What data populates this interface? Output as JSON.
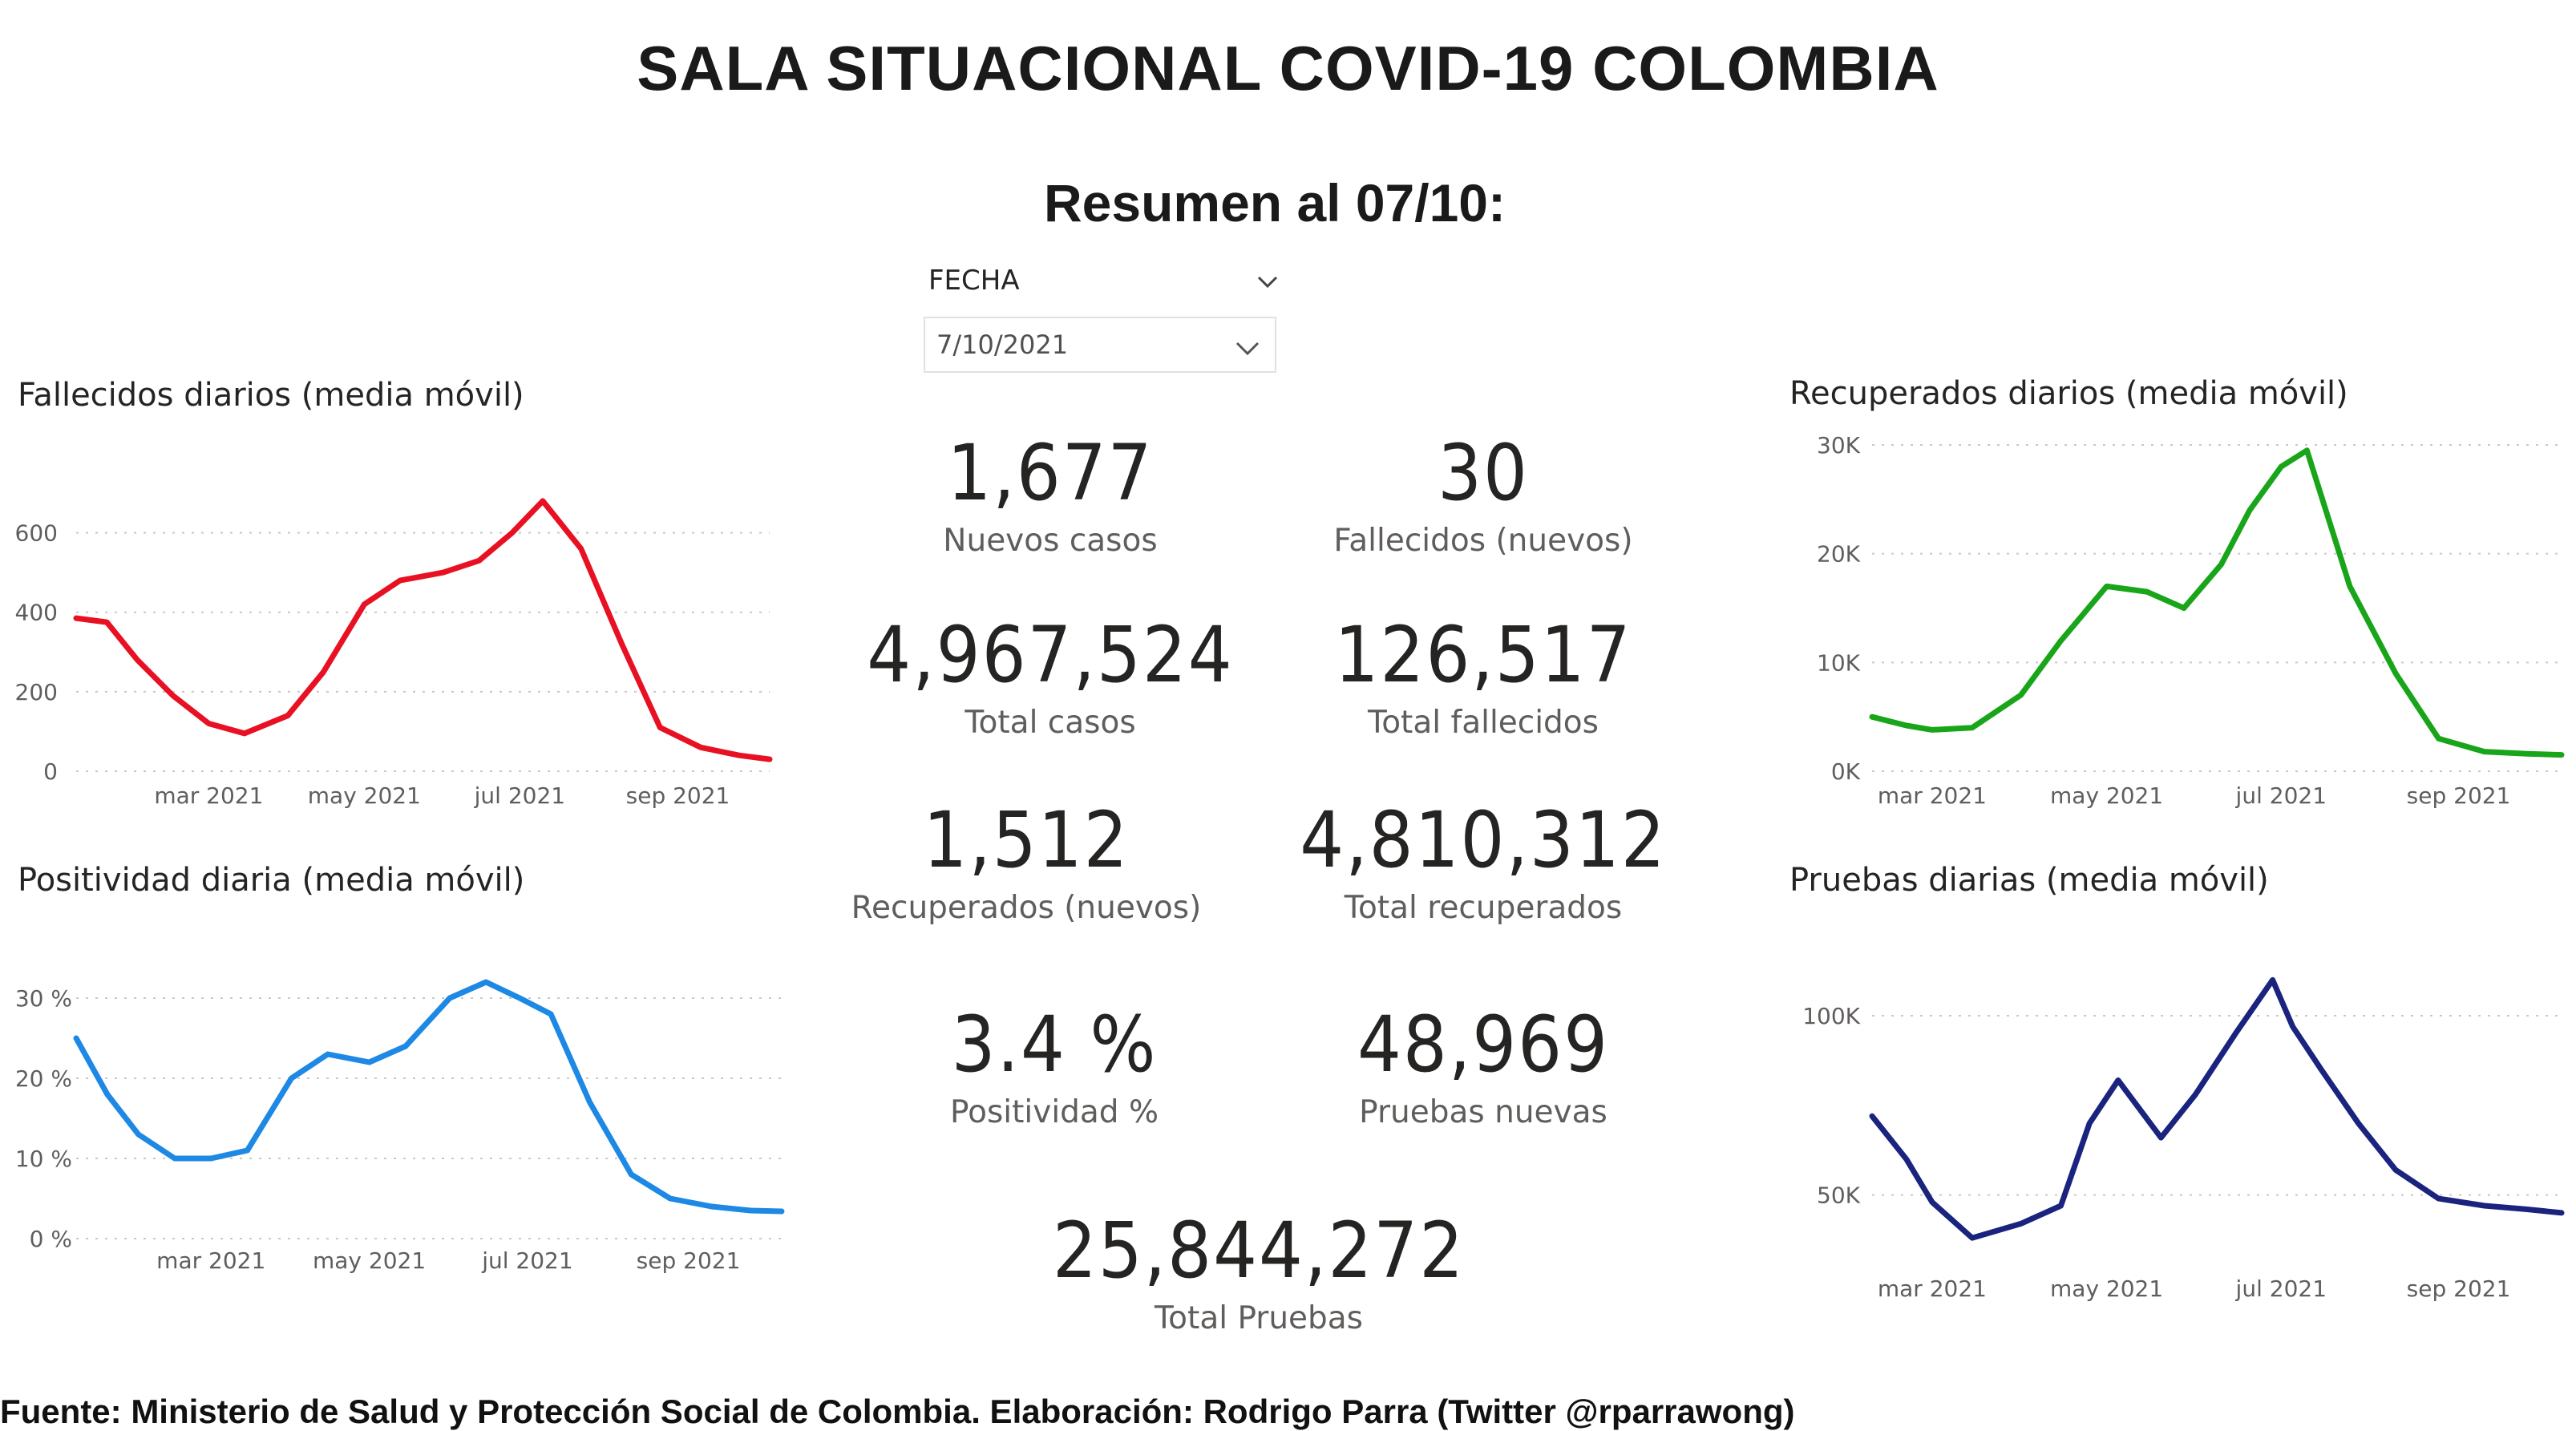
{
  "header": {
    "title": "SALA SITUACIONAL COVID-19 COLOMBIA",
    "subtitle": "Resumen al 07/10:"
  },
  "slicer": {
    "label": "FECHA",
    "value": "7/10/2021",
    "icon": "chevron-down-icon"
  },
  "kpis": {
    "nuevos_casos": {
      "value": "1,677",
      "label": "Nuevos casos"
    },
    "fallecidos_nuevos": {
      "value": "30",
      "label": "Fallecidos (nuevos)"
    },
    "total_casos": {
      "value": "4,967,524",
      "label": "Total casos"
    },
    "total_fallecidos": {
      "value": "126,517",
      "label": "Total fallecidos"
    },
    "recuperados_nuevos": {
      "value": "1,512",
      "label": "Recuperados (nuevos)"
    },
    "total_recuperados": {
      "value": "4,810,312",
      "label": "Total recuperados"
    },
    "positividad": {
      "value": "3.4 %",
      "label": "Positividad %"
    },
    "pruebas_nuevas": {
      "value": "48,969",
      "label": "Pruebas nuevas"
    },
    "total_pruebas": {
      "value": "25,844,272",
      "label": "Total Pruebas"
    }
  },
  "footer": {
    "text": "Fuente: Ministerio de Salud y Protección Social de Colombia. Elaboración: Rodrigo Parra (Twitter @rparrawong)"
  },
  "chart_data": [
    {
      "id": "fallecidos",
      "type": "line",
      "title": "Fallecidos diarios (media móvil)",
      "color": "#e81123",
      "ylim": [
        0,
        700
      ],
      "yticks": [
        0,
        200,
        400,
        600
      ],
      "ytick_labels": [
        "0",
        "200",
        "400",
        "600"
      ],
      "xlim": [
        "2021-01-08",
        "2021-10-07"
      ],
      "xticks": [
        "2021-03-01",
        "2021-05-01",
        "2021-07-01",
        "2021-09-01"
      ],
      "xtick_labels": [
        "mar 2021",
        "may 2021",
        "jul 2021",
        "sep 2021"
      ],
      "grid": true,
      "x": [
        "2021-01-08",
        "2021-01-20",
        "2021-02-01",
        "2021-02-15",
        "2021-03-01",
        "2021-03-15",
        "2021-04-01",
        "2021-04-15",
        "2021-05-01",
        "2021-05-15",
        "2021-06-01",
        "2021-06-15",
        "2021-06-28",
        "2021-07-10",
        "2021-07-25",
        "2021-08-10",
        "2021-08-25",
        "2021-09-10",
        "2021-09-25",
        "2021-10-07"
      ],
      "y": [
        385,
        375,
        280,
        190,
        120,
        95,
        140,
        250,
        420,
        480,
        500,
        530,
        600,
        680,
        560,
        320,
        110,
        60,
        40,
        30
      ]
    },
    {
      "id": "positividad",
      "type": "line",
      "title": "Positividad diaria (media móvil)",
      "color": "#1e88e5",
      "ylim": [
        0,
        33
      ],
      "yticks": [
        0,
        10,
        20,
        30
      ],
      "ytick_labels": [
        "0 %",
        "10 %",
        "20 %",
        "30 %"
      ],
      "xlim": [
        "2021-01-08",
        "2021-10-07"
      ],
      "xticks": [
        "2021-03-01",
        "2021-05-01",
        "2021-07-01",
        "2021-09-01"
      ],
      "xtick_labels": [
        "mar 2021",
        "may 2021",
        "jul 2021",
        "sep 2021"
      ],
      "grid": true,
      "x": [
        "2021-01-08",
        "2021-01-20",
        "2021-02-01",
        "2021-02-15",
        "2021-03-01",
        "2021-03-15",
        "2021-04-01",
        "2021-04-15",
        "2021-05-01",
        "2021-05-15",
        "2021-06-01",
        "2021-06-15",
        "2021-06-28",
        "2021-07-10",
        "2021-07-25",
        "2021-08-10",
        "2021-08-25",
        "2021-09-10",
        "2021-09-25",
        "2021-10-07"
      ],
      "y": [
        25,
        18,
        13,
        10,
        10,
        11,
        20,
        23,
        22,
        24,
        30,
        32,
        30,
        28,
        17,
        8,
        5,
        4,
        3.5,
        3.4
      ]
    },
    {
      "id": "recuperados",
      "type": "line",
      "title": "Recuperados diarios (media móvil)",
      "color": "#19a519",
      "ylim": [
        0,
        30000
      ],
      "yticks": [
        0,
        10000,
        20000,
        30000
      ],
      "ytick_labels": [
        "0K",
        "10K",
        "20K",
        "30K"
      ],
      "xlim": [
        "2021-02-08",
        "2021-10-07"
      ],
      "xticks": [
        "2021-03-01",
        "2021-05-01",
        "2021-07-01",
        "2021-09-01"
      ],
      "xtick_labels": [
        "mar 2021",
        "may 2021",
        "jul 2021",
        "sep 2021"
      ],
      "grid": true,
      "x": [
        "2021-02-08",
        "2021-02-20",
        "2021-03-01",
        "2021-03-15",
        "2021-04-01",
        "2021-04-15",
        "2021-05-01",
        "2021-05-15",
        "2021-05-28",
        "2021-06-10",
        "2021-06-20",
        "2021-07-01",
        "2021-07-10",
        "2021-07-25",
        "2021-08-10",
        "2021-08-25",
        "2021-09-10",
        "2021-09-25",
        "2021-10-07"
      ],
      "y": [
        5000,
        4200,
        3800,
        4000,
        7000,
        12000,
        17000,
        16500,
        15000,
        19000,
        24000,
        28000,
        29500,
        17000,
        9000,
        3000,
        1800,
        1600,
        1500
      ]
    },
    {
      "id": "pruebas",
      "type": "line",
      "title": "Pruebas diarias (media móvil)",
      "color": "#1a237e",
      "ylim": [
        30000,
        115000
      ],
      "yticks": [
        50000,
        100000
      ],
      "ytick_labels": [
        "50K",
        "100K"
      ],
      "xlim": [
        "2021-02-08",
        "2021-10-07"
      ],
      "xticks": [
        "2021-03-01",
        "2021-05-01",
        "2021-07-01",
        "2021-09-01"
      ],
      "xtick_labels": [
        "mar 2021",
        "may 2021",
        "jul 2021",
        "sep 2021"
      ],
      "grid": true,
      "x": [
        "2021-02-08",
        "2021-02-20",
        "2021-03-01",
        "2021-03-15",
        "2021-04-01",
        "2021-04-15",
        "2021-04-25",
        "2021-05-05",
        "2021-05-20",
        "2021-06-01",
        "2021-06-15",
        "2021-06-28",
        "2021-07-05",
        "2021-07-15",
        "2021-07-28",
        "2021-08-10",
        "2021-08-25",
        "2021-09-10",
        "2021-09-25",
        "2021-10-07"
      ],
      "y": [
        72000,
        60000,
        48000,
        38000,
        42000,
        47000,
        70000,
        82000,
        66000,
        78000,
        95000,
        110000,
        97000,
        85000,
        70000,
        57000,
        49000,
        47000,
        46000,
        45000
      ]
    }
  ]
}
